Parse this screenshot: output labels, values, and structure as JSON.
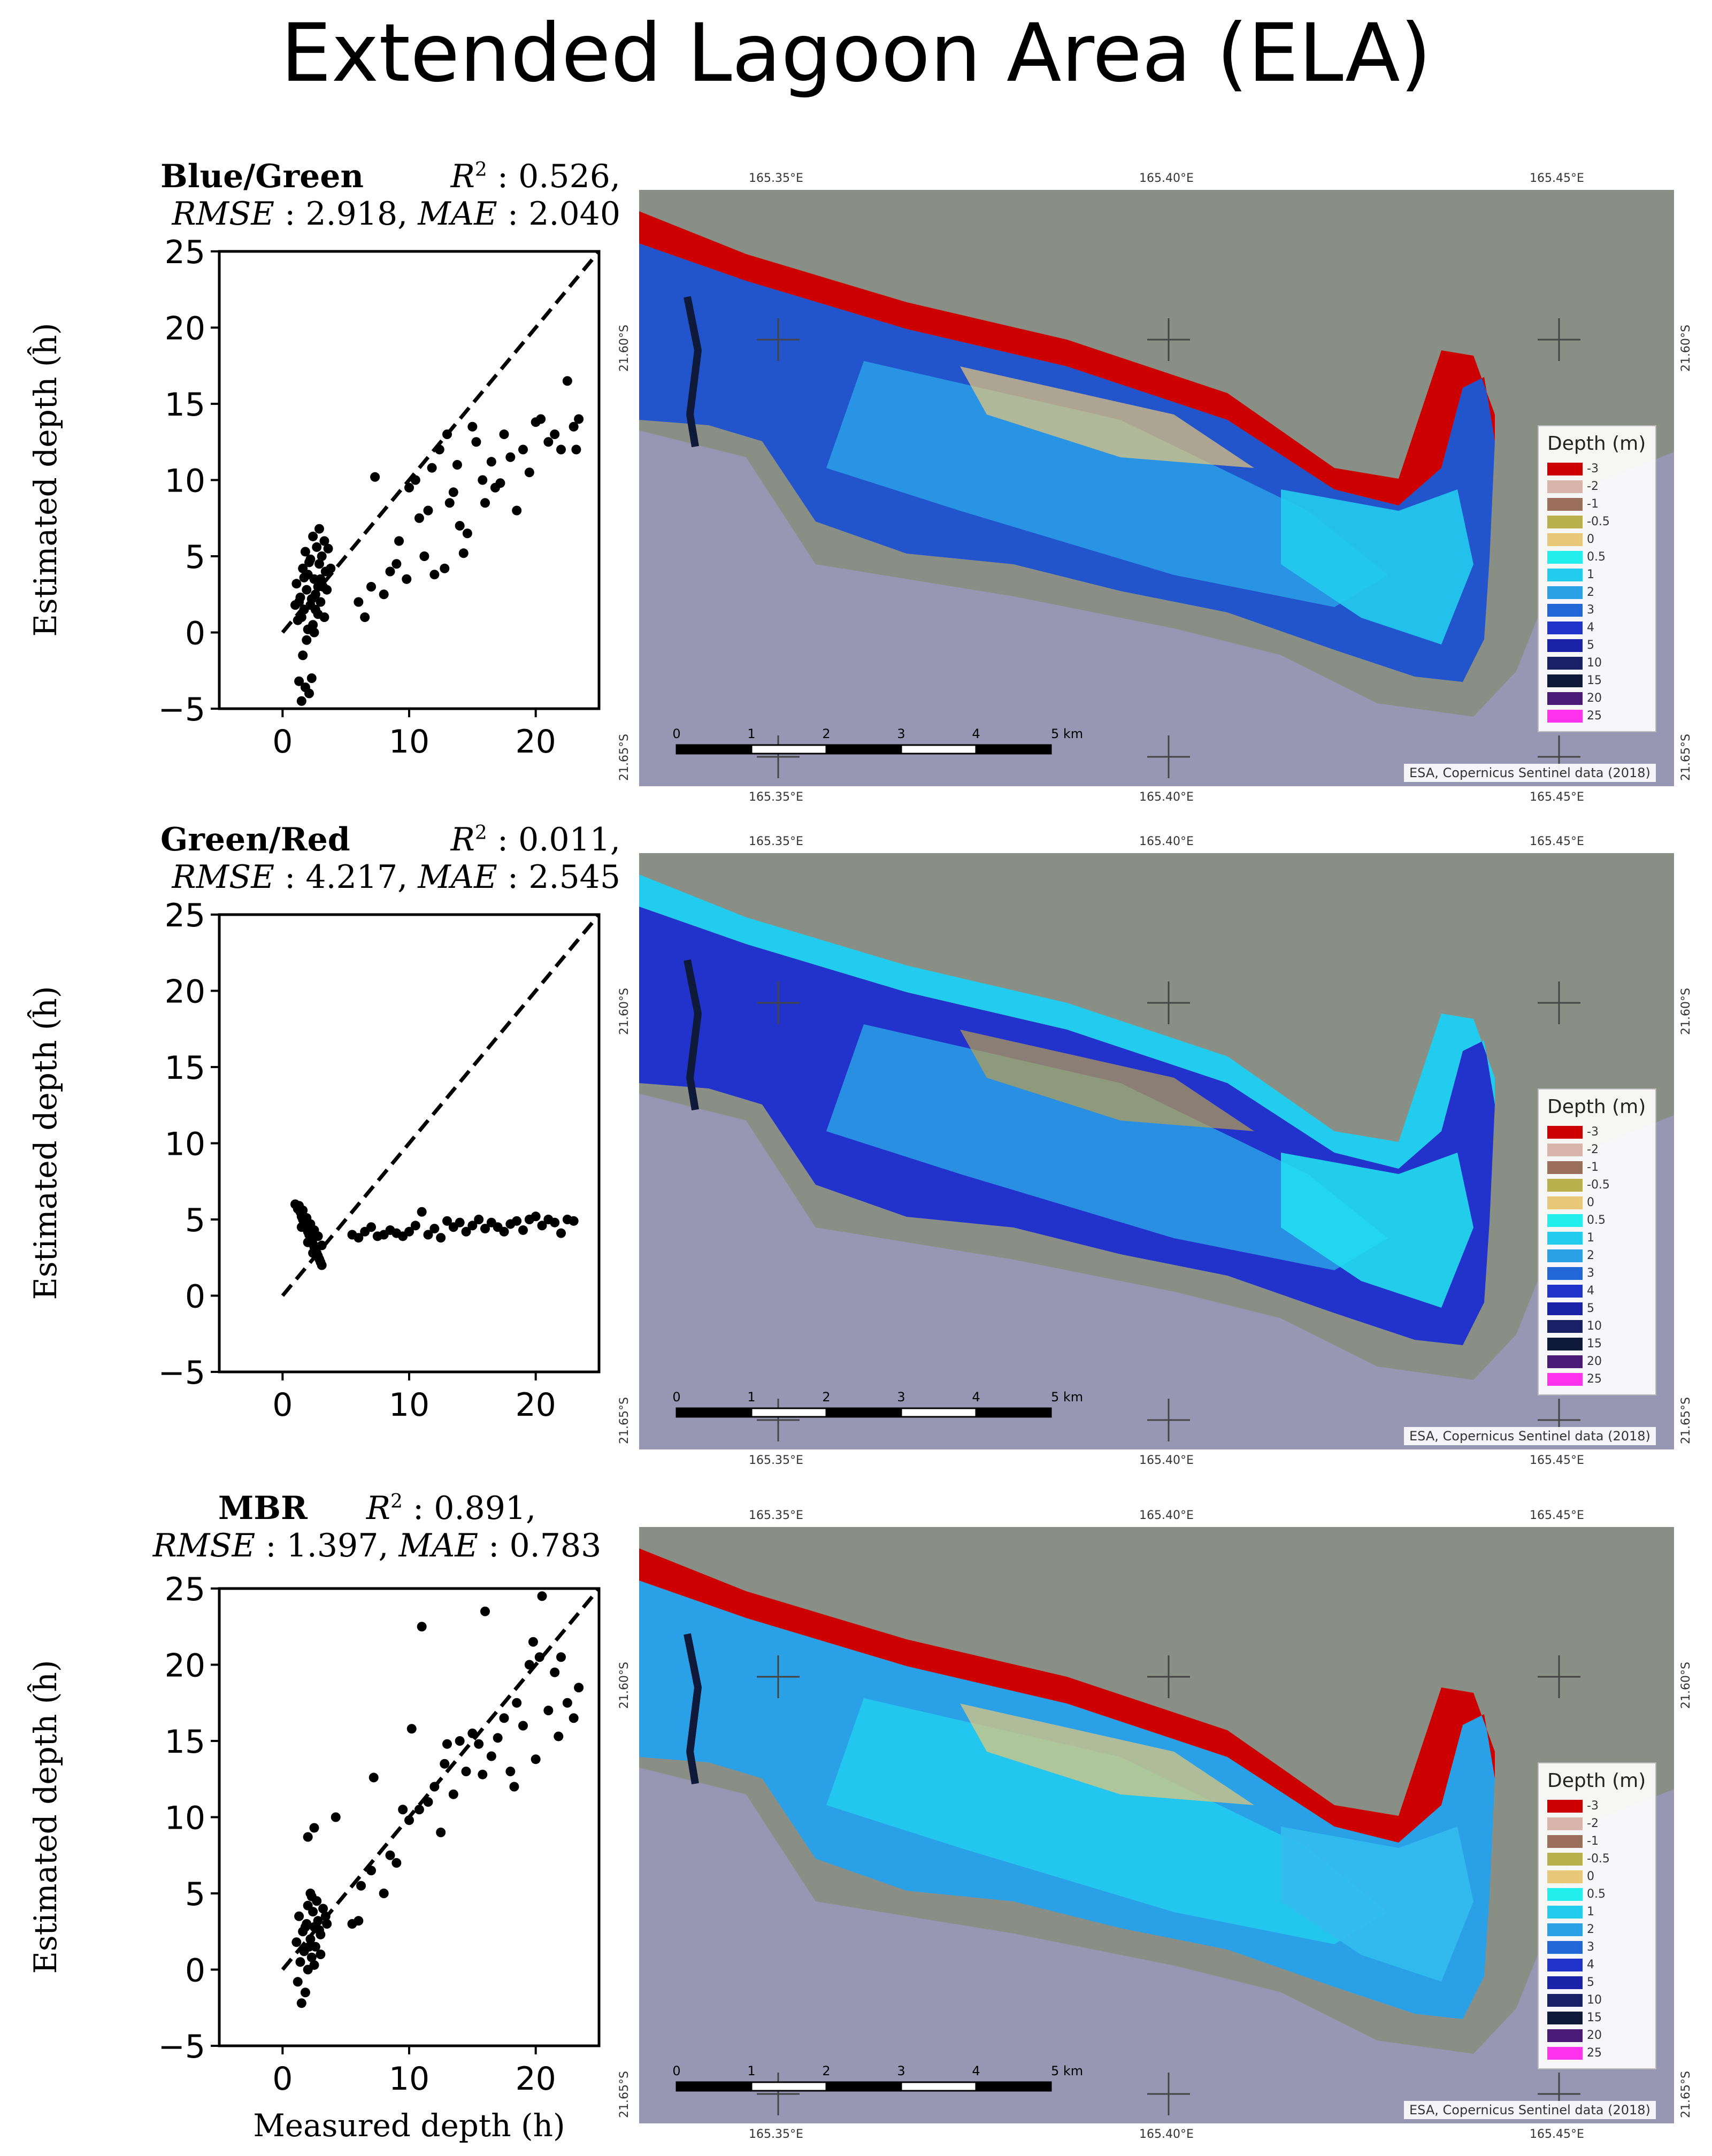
{
  "figure_title": "Extended Lagoon Area (ELA)",
  "shared": {
    "xlabel": "Measured depth (h)",
    "ylabel": "Estimated depth (ĥ)",
    "legend_title": "Depth (m)",
    "credit": "ESA, Copernicus Sentinel data (2018)",
    "scalebar_labels": [
      "0",
      "1",
      "2",
      "3",
      "4",
      "5 km"
    ],
    "lon_labels": [
      "165.35°E",
      "165.40°E",
      "165.45°E"
    ],
    "lat_labels": [
      "21.60°S",
      "21.65°S"
    ],
    "colors": {
      "land": "#8a8f85",
      "sea": "#9797b3",
      "map_bg": "#b0b3b0"
    }
  },
  "legend": [
    {
      "label": "-3",
      "color": "#cc0000"
    },
    {
      "label": "-2",
      "color": "#d8b4aa"
    },
    {
      "label": "-1",
      "color": "#9c6f5a"
    },
    {
      "label": "-0.5",
      "color": "#b8b04a"
    },
    {
      "label": "0",
      "color": "#e8c878"
    },
    {
      "label": "0.5",
      "color": "#22eeee"
    },
    {
      "label": "1",
      "color": "#22ccee"
    },
    {
      "label": "2",
      "color": "#2aa0e6"
    },
    {
      "label": "3",
      "color": "#2266d8"
    },
    {
      "label": "4",
      "color": "#2233cc"
    },
    {
      "label": "5",
      "color": "#1a22aa"
    },
    {
      "label": "10",
      "color": "#1a2066"
    },
    {
      "label": "15",
      "color": "#0f1a3a"
    },
    {
      "label": "20",
      "color": "#4a1a77"
    },
    {
      "label": "25",
      "color": "#ff33ee"
    }
  ],
  "panels": [
    {
      "name": "Blue/Green",
      "r2_label": "R",
      "r2": "0.526",
      "rmse_label": "RMSE",
      "rmse": "2.918",
      "mae_label": "MAE",
      "mae": "2.040"
    },
    {
      "name": "Green/Red",
      "r2_label": "R",
      "r2": "0.011",
      "rmse_label": "RMSE",
      "rmse": "4.217",
      "mae_label": "MAE",
      "mae": "2.545"
    },
    {
      "name": "MBR",
      "r2_label": "R",
      "r2": "0.891",
      "rmse_label": "RMSE",
      "rmse": "1.397",
      "mae_label": "MAE",
      "mae": "0.783"
    }
  ],
  "chart_data": [
    {
      "type": "scatter",
      "title": "Blue/Green",
      "xlabel": "Measured depth (h)",
      "ylabel": "Estimated depth (ĥ)",
      "xlim": [
        -5,
        25
      ],
      "ylim": [
        -5,
        25
      ],
      "xticks": [
        0,
        10,
        20
      ],
      "yticks": [
        -5,
        0,
        5,
        10,
        15,
        20,
        25
      ],
      "identity_line": true,
      "points": [
        [
          1.5,
          -4.5
        ],
        [
          1.8,
          -3.6
        ],
        [
          2.1,
          -4.0
        ],
        [
          1.3,
          -3.2
        ],
        [
          2.3,
          -3.0
        ],
        [
          1.6,
          -1.5
        ],
        [
          1.9,
          -0.5
        ],
        [
          2.4,
          0.5
        ],
        [
          1.2,
          0.8
        ],
        [
          2.8,
          1.2
        ],
        [
          1.7,
          1.5
        ],
        [
          2.2,
          1.8
        ],
        [
          3.0,
          2.0
        ],
        [
          1.4,
          2.3
        ],
        [
          2.6,
          2.5
        ],
        [
          1.9,
          2.8
        ],
        [
          3.2,
          3.0
        ],
        [
          1.1,
          3.2
        ],
        [
          2.5,
          3.5
        ],
        [
          2.0,
          3.8
        ],
        [
          3.4,
          4.0
        ],
        [
          1.6,
          4.2
        ],
        [
          2.9,
          4.5
        ],
        [
          2.2,
          4.8
        ],
        [
          3.1,
          5.0
        ],
        [
          1.8,
          5.3
        ],
        [
          2.7,
          5.6
        ],
        [
          3.3,
          6.0
        ],
        [
          2.4,
          6.3
        ],
        [
          2.9,
          6.8
        ],
        [
          1.5,
          1.0
        ],
        [
          2.0,
          0.2
        ],
        [
          2.6,
          1.5
        ],
        [
          3.5,
          2.8
        ],
        [
          1.3,
          2.0
        ],
        [
          2.3,
          2.2
        ],
        [
          3.0,
          3.5
        ],
        [
          1.7,
          3.6
        ],
        [
          2.1,
          4.6
        ],
        [
          2.8,
          3.0
        ],
        [
          3.6,
          5.5
        ],
        [
          3.8,
          4.2
        ],
        [
          1.0,
          1.8
        ],
        [
          2.5,
          0.0
        ],
        [
          3.3,
          1.0
        ],
        [
          6.0,
          2.0
        ],
        [
          6.5,
          1.0
        ],
        [
          7.0,
          3.0
        ],
        [
          7.3,
          10.2
        ],
        [
          8.0,
          2.5
        ],
        [
          8.5,
          4.0
        ],
        [
          9.0,
          4.5
        ],
        [
          9.2,
          6.0
        ],
        [
          9.8,
          3.5
        ],
        [
          10.0,
          9.5
        ],
        [
          10.5,
          10.0
        ],
        [
          10.8,
          7.5
        ],
        [
          11.2,
          5.0
        ],
        [
          11.5,
          8.0
        ],
        [
          11.8,
          10.8
        ],
        [
          12.0,
          3.8
        ],
        [
          12.4,
          12.0
        ],
        [
          12.8,
          4.2
        ],
        [
          13.0,
          13.0
        ],
        [
          13.2,
          8.5
        ],
        [
          13.5,
          9.2
        ],
        [
          13.8,
          11.0
        ],
        [
          14.0,
          7.0
        ],
        [
          14.3,
          5.2
        ],
        [
          14.6,
          6.5
        ],
        [
          15.0,
          13.5
        ],
        [
          15.3,
          12.5
        ],
        [
          15.8,
          10.0
        ],
        [
          16.0,
          8.5
        ],
        [
          16.5,
          11.2
        ],
        [
          16.8,
          9.5
        ],
        [
          17.2,
          9.8
        ],
        [
          17.5,
          13.0
        ],
        [
          18.0,
          11.5
        ],
        [
          18.5,
          8.0
        ],
        [
          19.0,
          12.0
        ],
        [
          19.5,
          10.5
        ],
        [
          20.0,
          13.8
        ],
        [
          20.4,
          14.0
        ],
        [
          21.0,
          12.5
        ],
        [
          21.5,
          13.0
        ],
        [
          22.0,
          12.0
        ],
        [
          22.5,
          16.5
        ],
        [
          23.0,
          13.5
        ],
        [
          23.4,
          14.0
        ],
        [
          23.2,
          12.0
        ]
      ]
    },
    {
      "type": "scatter",
      "title": "Green/Red",
      "xlabel": "Measured depth (h)",
      "ylabel": "Estimated depth (ĥ)",
      "xlim": [
        -5,
        25
      ],
      "ylim": [
        -5,
        25
      ],
      "xticks": [
        0,
        10,
        20
      ],
      "yticks": [
        -5,
        0,
        5,
        10,
        15,
        20,
        25
      ],
      "identity_line": true,
      "points": [
        [
          1.0,
          6.0
        ],
        [
          1.2,
          5.7
        ],
        [
          1.4,
          5.5
        ],
        [
          1.5,
          5.2
        ],
        [
          1.6,
          5.0
        ],
        [
          1.7,
          4.8
        ],
        [
          1.8,
          4.6
        ],
        [
          1.9,
          4.4
        ],
        [
          2.0,
          4.2
        ],
        [
          2.1,
          4.0
        ],
        [
          2.2,
          3.8
        ],
        [
          2.3,
          3.6
        ],
        [
          2.4,
          3.4
        ],
        [
          2.5,
          3.2
        ],
        [
          2.6,
          3.0
        ],
        [
          2.7,
          2.8
        ],
        [
          2.8,
          2.6
        ],
        [
          2.9,
          2.4
        ],
        [
          3.0,
          2.2
        ],
        [
          3.1,
          2.0
        ],
        [
          1.3,
          5.9
        ],
        [
          1.6,
          5.6
        ],
        [
          1.9,
          5.1
        ],
        [
          2.2,
          4.7
        ],
        [
          2.5,
          4.3
        ],
        [
          2.8,
          3.9
        ],
        [
          3.1,
          3.3
        ],
        [
          2.0,
          3.5
        ],
        [
          1.5,
          4.5
        ],
        [
          2.4,
          2.8
        ],
        [
          5.5,
          4.0
        ],
        [
          6.0,
          3.8
        ],
        [
          6.5,
          4.2
        ],
        [
          7.0,
          4.5
        ],
        [
          7.5,
          3.9
        ],
        [
          8.0,
          4.0
        ],
        [
          8.5,
          4.3
        ],
        [
          9.0,
          4.1
        ],
        [
          9.5,
          3.9
        ],
        [
          10.0,
          4.2
        ],
        [
          10.5,
          4.6
        ],
        [
          11.0,
          5.5
        ],
        [
          11.5,
          4.0
        ],
        [
          12.0,
          4.4
        ],
        [
          12.5,
          3.8
        ],
        [
          13.0,
          4.9
        ],
        [
          13.5,
          4.5
        ],
        [
          14.0,
          4.8
        ],
        [
          14.5,
          4.2
        ],
        [
          15.0,
          4.6
        ],
        [
          15.5,
          5.0
        ],
        [
          16.0,
          4.4
        ],
        [
          16.5,
          4.8
        ],
        [
          17.0,
          4.5
        ],
        [
          17.5,
          4.2
        ],
        [
          18.0,
          4.7
        ],
        [
          18.5,
          4.9
        ],
        [
          19.0,
          4.3
        ],
        [
          19.5,
          5.0
        ],
        [
          20.0,
          5.2
        ],
        [
          20.5,
          4.6
        ],
        [
          21.0,
          5.0
        ],
        [
          21.5,
          4.8
        ],
        [
          22.0,
          4.1
        ],
        [
          22.5,
          5.0
        ],
        [
          23.0,
          4.9
        ]
      ]
    },
    {
      "type": "scatter",
      "title": "MBR",
      "xlabel": "Measured depth (h)",
      "ylabel": "Estimated depth (ĥ)",
      "xlim": [
        -5,
        25
      ],
      "ylim": [
        -5,
        25
      ],
      "xticks": [
        0,
        10,
        20
      ],
      "yticks": [
        -5,
        0,
        5,
        10,
        15,
        20,
        25
      ],
      "identity_line": true,
      "points": [
        [
          1.5,
          -2.2
        ],
        [
          1.8,
          -1.5
        ],
        [
          1.2,
          -0.8
        ],
        [
          2.0,
          0.0
        ],
        [
          1.4,
          0.5
        ],
        [
          2.3,
          0.8
        ],
        [
          1.7,
          1.2
        ],
        [
          2.6,
          1.5
        ],
        [
          1.1,
          1.8
        ],
        [
          2.2,
          2.0
        ],
        [
          3.0,
          2.3
        ],
        [
          1.6,
          2.5
        ],
        [
          2.5,
          2.8
        ],
        [
          1.9,
          3.0
        ],
        [
          2.8,
          3.2
        ],
        [
          1.3,
          3.5
        ],
        [
          2.4,
          3.8
        ],
        [
          3.2,
          4.0
        ],
        [
          2.0,
          4.2
        ],
        [
          2.7,
          4.5
        ],
        [
          2.2,
          5.0
        ],
        [
          3.0,
          1.0
        ],
        [
          3.4,
          3.5
        ],
        [
          2.1,
          1.5
        ],
        [
          1.8,
          2.8
        ],
        [
          2.5,
          0.3
        ],
        [
          2.9,
          2.6
        ],
        [
          3.5,
          3.0
        ],
        [
          2.3,
          4.8
        ],
        [
          2.0,
          8.7
        ],
        [
          2.5,
          9.3
        ],
        [
          4.2,
          10.0
        ],
        [
          5.5,
          3.0
        ],
        [
          6.0,
          3.2
        ],
        [
          6.2,
          5.5
        ],
        [
          7.0,
          6.5
        ],
        [
          7.2,
          12.6
        ],
        [
          8.0,
          5.0
        ],
        [
          8.5,
          7.5
        ],
        [
          9.0,
          7.0
        ],
        [
          9.5,
          10.5
        ],
        [
          10.0,
          9.8
        ],
        [
          10.2,
          15.8
        ],
        [
          10.8,
          10.5
        ],
        [
          11.0,
          22.5
        ],
        [
          11.5,
          11.0
        ],
        [
          12.0,
          12.0
        ],
        [
          12.5,
          9.0
        ],
        [
          12.8,
          13.5
        ],
        [
          13.0,
          14.8
        ],
        [
          13.5,
          11.5
        ],
        [
          14.0,
          15.0
        ],
        [
          14.5,
          13.0
        ],
        [
          15.0,
          15.5
        ],
        [
          15.5,
          14.8
        ],
        [
          15.8,
          12.8
        ],
        [
          16.0,
          23.5
        ],
        [
          16.5,
          14.0
        ],
        [
          17.0,
          15.2
        ],
        [
          17.5,
          16.5
        ],
        [
          18.0,
          13.0
        ],
        [
          18.3,
          12.0
        ],
        [
          18.5,
          17.5
        ],
        [
          19.0,
          16.0
        ],
        [
          19.5,
          20.0
        ],
        [
          19.8,
          21.5
        ],
        [
          20.0,
          13.8
        ],
        [
          20.3,
          20.5
        ],
        [
          20.5,
          24.5
        ],
        [
          21.0,
          17.0
        ],
        [
          21.5,
          19.5
        ],
        [
          22.0,
          20.5
        ],
        [
          22.5,
          17.5
        ],
        [
          23.0,
          16.5
        ],
        [
          23.4,
          18.5
        ],
        [
          21.8,
          15.3
        ]
      ]
    }
  ]
}
